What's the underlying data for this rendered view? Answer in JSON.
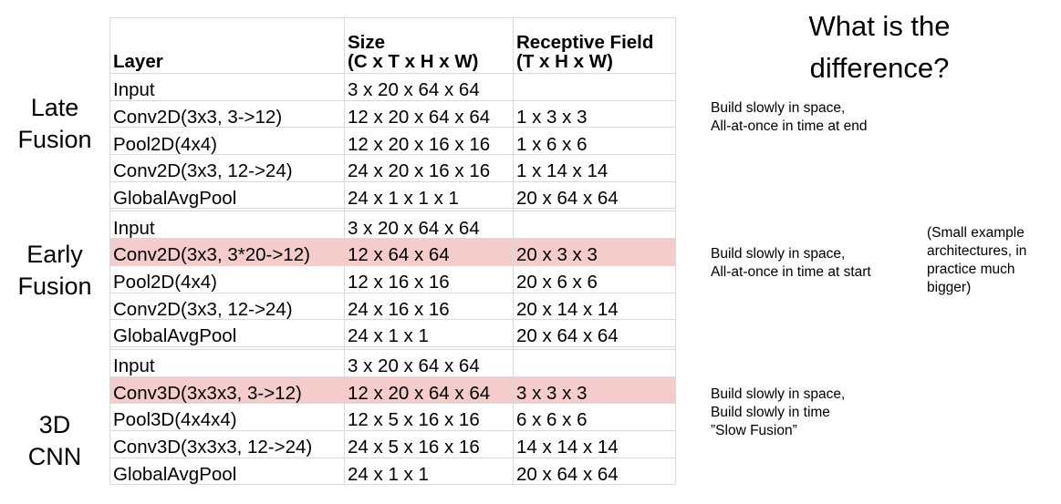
{
  "table": {
    "header": {
      "layer": "Layer",
      "size_line1": "Size",
      "size_line2": "(C x T x H x W)",
      "rf_line1": "Receptive Field",
      "rf_line2": "(T x H x W)"
    },
    "groups": [
      {
        "name": "late-fusion",
        "label_lines": [
          "Late",
          "Fusion"
        ],
        "note_lines": [
          "Build slowly in space,",
          "All-at-once in time at end"
        ],
        "rows": [
          {
            "layer": "Input",
            "size": "3 x 20 x 64 x 64",
            "rf": "",
            "highlight": false
          },
          {
            "layer": "Conv2D(3x3, 3->12)",
            "size": "12 x 20 x 64 x 64",
            "rf": "1 x 3 x 3",
            "highlight": false
          },
          {
            "layer": "Pool2D(4x4)",
            "size": "12 x 20 x 16 x 16",
            "rf": "1 x 6 x 6",
            "highlight": false
          },
          {
            "layer": "Conv2D(3x3, 12->24)",
            "size": "24 x 20 x 16 x 16",
            "rf": "1 x 14 x 14",
            "highlight": false
          },
          {
            "layer": "GlobalAvgPool",
            "size": "24 x 1 x 1 x 1",
            "rf": "20 x 64 x 64",
            "highlight": false
          }
        ]
      },
      {
        "name": "early-fusion",
        "label_lines": [
          "Early",
          "Fusion"
        ],
        "note_lines": [
          "Build slowly in space,",
          "All-at-once in time at start"
        ],
        "rows": [
          {
            "layer": "Input",
            "size": "3 x 20 x 64 x 64",
            "rf": "",
            "highlight": false
          },
          {
            "layer": "Conv2D(3x3, 3*20->12)",
            "size": "12 x 64 x 64",
            "rf": "20 x 3 x 3",
            "highlight": true
          },
          {
            "layer": "Pool2D(4x4)",
            "size": "12 x 16 x 16",
            "rf": "20 x 6 x 6",
            "highlight": false
          },
          {
            "layer": "Conv2D(3x3, 12->24)",
            "size": "24 x 16 x 16",
            "rf": "20 x 14 x 14",
            "highlight": false
          },
          {
            "layer": "GlobalAvgPool",
            "size": "24 x 1 x 1",
            "rf": "20 x 64 x 64",
            "highlight": false
          }
        ]
      },
      {
        "name": "3d-cnn",
        "label_lines": [
          "3D",
          "CNN"
        ],
        "note_lines": [
          "Build slowly in space,",
          "Build slowly in time",
          "”Slow Fusion”"
        ],
        "rows": [
          {
            "layer": "Input",
            "size": "3 x 20 x 64 x 64",
            "rf": "",
            "highlight": false
          },
          {
            "layer": "Conv3D(3x3x3, 3->12)",
            "size": "12 x 20 x 64 x 64",
            "rf": "3 x 3 x 3",
            "highlight": true
          },
          {
            "layer": "Pool3D(4x4x4)",
            "size": "12 x 5 x 16 x 16",
            "rf": "6 x 6 x 6",
            "highlight": false
          },
          {
            "layer": "Conv3D(3x3x3, 12->24)",
            "size": "24 x 5 x 16 x 16",
            "rf": "14 x 14 x 14",
            "highlight": false
          },
          {
            "layer": "GlobalAvgPool",
            "size": "24 x 1 x 1",
            "rf": "20 x 64 x 64",
            "highlight": false
          }
        ]
      }
    ]
  },
  "question_lines": [
    "What is the",
    "difference?"
  ],
  "side_note_lines": [
    "(Small example",
    "architectures, in",
    "practice much",
    "bigger)"
  ],
  "colors": {
    "highlight": "#f4cccc",
    "grid": "#d9d9d9"
  }
}
